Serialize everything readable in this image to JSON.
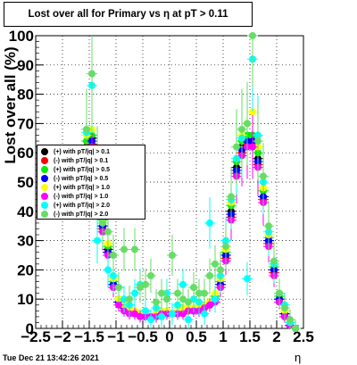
{
  "title": "Lost over all for Primary vs   η at pT > 0.11",
  "timestamp": "Tue Dec 21 13:42:26 2021",
  "chart_data": {
    "type": "scatter",
    "xlabel": "η",
    "ylabel": "Lost over all (%)",
    "xlim": [
      -2.5,
      2.5
    ],
    "ylim": [
      0,
      100
    ],
    "x_ticks": [
      "−2.5",
      "−2",
      "−1.5",
      "−1",
      "−0.5",
      "0",
      "0.5",
      "1",
      "1.5",
      "2",
      "2.5"
    ],
    "y_ticks": [
      "0",
      "10",
      "20",
      "30",
      "40",
      "50",
      "60",
      "70",
      "80",
      "90",
      "100"
    ],
    "grid": true,
    "legend_position": "left-middle",
    "series": [
      {
        "name": "(+) with pT/|q| > 0.1",
        "color": "#000000",
        "x": [
          -1.55,
          -1.45,
          -1.35,
          -1.25,
          -1.15,
          -1.05,
          -0.95,
          -0.85,
          -0.75,
          -0.65,
          -0.55,
          -0.45,
          -0.35,
          -0.25,
          -0.15,
          -0.05,
          0.05,
          0.15,
          0.25,
          0.35,
          0.45,
          0.55,
          0.65,
          0.75,
          0.85,
          0.95,
          1.05,
          1.15,
          1.25,
          1.35,
          1.45,
          1.55,
          1.65,
          1.75,
          1.85,
          1.95,
          2.05,
          2.15,
          2.25,
          2.35
        ],
        "y": [
          62,
          65,
          50,
          35,
          27,
          15,
          9,
          7,
          6,
          5,
          5,
          4,
          4,
          5,
          5,
          5,
          5,
          5,
          6,
          6,
          6,
          6,
          7,
          8,
          10,
          15,
          25,
          40,
          55,
          62,
          64,
          64,
          58,
          45,
          30,
          20,
          10,
          5,
          1,
          0
        ]
      },
      {
        "name": "(-) with pT/|q| > 0.1",
        "color": "#ff0000",
        "x": [
          -1.55,
          -1.45,
          -1.35,
          -1.25,
          -1.15,
          -1.05,
          -0.95,
          -0.85,
          -0.75,
          -0.65,
          -0.55,
          -0.45,
          -0.35,
          -0.25,
          -0.15,
          -0.05,
          0.05,
          0.15,
          0.25,
          0.35,
          0.45,
          0.55,
          0.65,
          0.75,
          0.85,
          0.95,
          1.05,
          1.15,
          1.25,
          1.35,
          1.45,
          1.55,
          1.65,
          1.75,
          1.85,
          1.95,
          2.05,
          2.15,
          2.25,
          2.35
        ],
        "y": [
          60,
          63,
          49,
          34,
          26,
          14,
          9,
          7,
          6,
          5,
          5,
          4,
          4,
          5,
          5,
          5,
          5,
          5,
          6,
          6,
          6,
          6,
          7,
          8,
          10,
          14,
          24,
          38,
          53,
          60,
          63,
          63,
          56,
          44,
          29,
          19,
          9,
          4,
          1,
          0
        ]
      },
      {
        "name": "(+) with pT/|q| > 0.5",
        "color": "#00ee00",
        "x": [
          -1.55,
          -1.45,
          -1.35,
          -1.25,
          -1.15,
          -1.05,
          -0.95,
          -0.85,
          -0.75,
          -0.65,
          -0.55,
          -0.45,
          -0.35,
          -0.25,
          -0.15,
          -0.05,
          0.05,
          0.15,
          0.25,
          0.35,
          0.45,
          0.55,
          0.65,
          0.75,
          0.85,
          0.95,
          1.05,
          1.15,
          1.25,
          1.35,
          1.45,
          1.55,
          1.65,
          1.75,
          1.85,
          1.95,
          2.05,
          2.15,
          2.25,
          2.35
        ],
        "y": [
          64,
          66,
          52,
          37,
          28,
          16,
          10,
          8,
          6,
          6,
          5,
          5,
          4,
          5,
          5,
          6,
          5,
          6,
          6,
          7,
          6,
          7,
          7,
          9,
          11,
          16,
          26,
          42,
          57,
          64,
          66,
          66,
          60,
          47,
          31,
          21,
          11,
          5,
          2,
          0
        ]
      },
      {
        "name": "(-) with pT/|q| > 0.5",
        "color": "#0000ff",
        "x": [
          -1.55,
          -1.45,
          -1.35,
          -1.25,
          -1.15,
          -1.05,
          -0.95,
          -0.85,
          -0.75,
          -0.65,
          -0.55,
          -0.45,
          -0.35,
          -0.25,
          -0.15,
          -0.05,
          0.05,
          0.15,
          0.25,
          0.35,
          0.45,
          0.55,
          0.65,
          0.75,
          0.85,
          0.95,
          1.05,
          1.15,
          1.25,
          1.35,
          1.45,
          1.55,
          1.65,
          1.75,
          1.85,
          1.95,
          2.05,
          2.15,
          2.25,
          2.35
        ],
        "y": [
          61,
          64,
          50,
          35,
          26,
          15,
          9,
          7,
          6,
          5,
          5,
          4,
          4,
          5,
          5,
          5,
          5,
          5,
          6,
          6,
          6,
          6,
          7,
          8,
          10,
          15,
          25,
          39,
          54,
          61,
          64,
          64,
          57,
          45,
          30,
          20,
          10,
          5,
          1,
          0
        ]
      },
      {
        "name": "(+) with pT/|q| > 1.0",
        "color": "#ffff00",
        "x": [
          -1.55,
          -1.45,
          -1.35,
          -1.25,
          -1.15,
          -1.05,
          -0.95,
          -0.85,
          -0.75,
          -0.65,
          -0.55,
          -0.45,
          -0.35,
          -0.25,
          -0.15,
          -0.05,
          0.05,
          0.15,
          0.25,
          0.35,
          0.45,
          0.55,
          0.65,
          0.75,
          0.85,
          0.95,
          1.05,
          1.15,
          1.25,
          1.35,
          1.45,
          1.55,
          1.65,
          1.75,
          1.85,
          1.95,
          2.05,
          2.15,
          2.25,
          2.35
        ],
        "y": [
          66,
          68,
          54,
          38,
          29,
          17,
          10,
          8,
          7,
          6,
          5,
          5,
          4,
          5,
          6,
          6,
          5,
          6,
          7,
          7,
          7,
          7,
          8,
          9,
          12,
          17,
          27,
          43,
          58,
          66,
          70,
          74,
          62,
          48,
          32,
          22,
          12,
          6,
          2,
          0
        ]
      },
      {
        "name": "(-) with pT/|q| > 1.0",
        "color": "#ff00ff",
        "x": [
          -1.55,
          -1.45,
          -1.35,
          -1.25,
          -1.15,
          -1.05,
          -0.95,
          -0.85,
          -0.75,
          -0.65,
          -0.55,
          -0.45,
          -0.35,
          -0.25,
          -0.15,
          -0.05,
          0.05,
          0.15,
          0.25,
          0.35,
          0.45,
          0.55,
          0.65,
          0.75,
          0.85,
          0.95,
          1.05,
          1.15,
          1.25,
          1.35,
          1.45,
          1.55,
          1.65,
          1.75,
          1.85,
          1.95,
          2.05,
          2.15,
          2.25,
          2.35
        ],
        "y": [
          60,
          62,
          48,
          33,
          25,
          14,
          8,
          6,
          5,
          5,
          4,
          4,
          4,
          4,
          5,
          5,
          5,
          5,
          5,
          6,
          6,
          6,
          7,
          8,
          9,
          14,
          23,
          37,
          52,
          59,
          62,
          62,
          55,
          43,
          28,
          18,
          9,
          4,
          1,
          0
        ]
      },
      {
        "name": "(+) with pT/|q| > 2.0",
        "color": "#00ffff",
        "x": [
          -1.55,
          -1.45,
          -1.35,
          -1.25,
          -1.15,
          -1.05,
          -0.95,
          -0.85,
          -0.75,
          -0.65,
          -0.55,
          -0.45,
          -0.35,
          -0.25,
          -0.15,
          -0.05,
          0.05,
          0.15,
          0.25,
          0.35,
          0.45,
          0.55,
          0.65,
          0.75,
          0.85,
          0.95,
          1.05,
          1.15,
          1.25,
          1.35,
          1.45,
          1.55,
          1.65,
          1.75,
          1.85,
          1.95,
          2.05,
          2.15,
          2.25,
          2.35
        ],
        "y": [
          67,
          83,
          30,
          40,
          20,
          18,
          14,
          10,
          8,
          12,
          15,
          6,
          3,
          7,
          4,
          12,
          5,
          8,
          15,
          3,
          10,
          9,
          5,
          36,
          10,
          18,
          30,
          44,
          58,
          65,
          17,
          92,
          66,
          50,
          33,
          22,
          12,
          8,
          2,
          0
        ]
      },
      {
        "name": "(-) with pT/|q| > 2.0",
        "color": "#66dd66",
        "x": [
          -1.55,
          -1.45,
          -1.35,
          -1.25,
          -1.15,
          -1.05,
          -0.95,
          -0.85,
          -0.75,
          -0.65,
          -0.55,
          -0.45,
          -0.35,
          -0.25,
          -0.15,
          -0.05,
          0.05,
          0.15,
          0.25,
          0.35,
          0.45,
          0.55,
          0.65,
          0.75,
          0.85,
          0.95,
          1.05,
          1.15,
          1.25,
          1.35,
          1.45,
          1.55,
          1.65,
          1.75,
          1.85,
          1.95,
          2.05,
          2.15,
          2.25,
          2.35
        ],
        "y": [
          68,
          87,
          57,
          36,
          33,
          25,
          14,
          27,
          10,
          27,
          14,
          15,
          18,
          9,
          12,
          10,
          25,
          12,
          10,
          9,
          14,
          12,
          12,
          18,
          22,
          20,
          28,
          45,
          62,
          68,
          70,
          100,
          64,
          52,
          35,
          23,
          12,
          7,
          3,
          0
        ]
      }
    ]
  }
}
